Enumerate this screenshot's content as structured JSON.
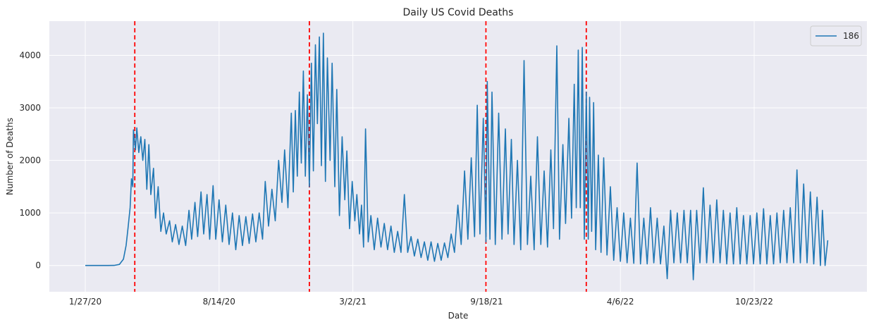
{
  "chart_data": {
    "type": "line",
    "title": "Daily US Covid Deaths",
    "xlabel": "Date",
    "ylabel": "Number of Deaths",
    "x_ticks": [
      "1/27/20",
      "8/14/20",
      "3/2/21",
      "9/18/21",
      "4/6/22",
      "10/23/22"
    ],
    "ylim": [
      -500,
      4650
    ],
    "y_ticks": [
      0,
      1000,
      2000,
      3000,
      4000
    ],
    "grid": true,
    "legend_position": "top-right",
    "series": [
      {
        "name": "186",
        "color": "#1f77b4",
        "note_x_start": "1/27/20",
        "points": [
          [
            "1/27/20",
            0
          ],
          [
            "2/15/20",
            0
          ],
          [
            "3/1/20",
            0
          ],
          [
            "3/10/20",
            2
          ],
          [
            "3/18/20",
            20
          ],
          [
            "3/24/20",
            120
          ],
          [
            "3/28/20",
            380
          ],
          [
            "3/31/20",
            720
          ],
          [
            "4/3/20",
            1100
          ],
          [
            "4/5/20",
            1650
          ],
          [
            "4/7/20",
            1500
          ],
          [
            "4/8/20",
            2580
          ],
          [
            "4/11/20",
            2200
          ],
          [
            "4/13/20",
            2620
          ],
          [
            "4/16/20",
            2150
          ],
          [
            "4/19/20",
            2450
          ],
          [
            "4/22/20",
            2000
          ],
          [
            "4/25/20",
            2400
          ],
          [
            "4/28/20",
            1450
          ],
          [
            "5/1/20",
            2300
          ],
          [
            "5/4/20",
            1350
          ],
          [
            "5/8/20",
            1850
          ],
          [
            "5/11/20",
            900
          ],
          [
            "5/15/20",
            1500
          ],
          [
            "5/19/20",
            650
          ],
          [
            "5/23/20",
            1000
          ],
          [
            "5/27/20",
            600
          ],
          [
            "6/1/20",
            850
          ],
          [
            "6/5/20",
            450
          ],
          [
            "6/10/20",
            780
          ],
          [
            "6/15/20",
            400
          ],
          [
            "6/20/20",
            750
          ],
          [
            "6/25/20",
            380
          ],
          [
            "6/30/20",
            1050
          ],
          [
            "7/4/20",
            500
          ],
          [
            "7/9/20",
            1200
          ],
          [
            "7/13/20",
            550
          ],
          [
            "7/18/20",
            1400
          ],
          [
            "7/22/20",
            600
          ],
          [
            "7/27/20",
            1350
          ],
          [
            "7/31/20",
            500
          ],
          [
            "8/5/20",
            1520
          ],
          [
            "8/9/20",
            500
          ],
          [
            "8/14/20",
            1250
          ],
          [
            "8/19/20",
            450
          ],
          [
            "8/24/20",
            1150
          ],
          [
            "8/29/20",
            400
          ],
          [
            "9/3/20",
            1000
          ],
          [
            "9/8/20",
            300
          ],
          [
            "9/13/20",
            950
          ],
          [
            "9/18/20",
            380
          ],
          [
            "9/23/20",
            930
          ],
          [
            "9/28/20",
            420
          ],
          [
            "10/3/20",
            980
          ],
          [
            "10/8/20",
            450
          ],
          [
            "10/13/20",
            1000
          ],
          [
            "10/18/20",
            500
          ],
          [
            "10/22/20",
            1600
          ],
          [
            "10/27/20",
            750
          ],
          [
            "11/1/20",
            1450
          ],
          [
            "11/6/20",
            850
          ],
          [
            "11/11/20",
            2000
          ],
          [
            "11/16/20",
            1200
          ],
          [
            "11/20/20",
            2200
          ],
          [
            "11/25/20",
            1100
          ],
          [
            "11/30/20",
            2900
          ],
          [
            "12/3/20",
            1400
          ],
          [
            "12/6/20",
            2950
          ],
          [
            "12/9/20",
            1700
          ],
          [
            "12/12/20",
            3300
          ],
          [
            "12/15/20",
            1950
          ],
          [
            "12/18/20",
            3700
          ],
          [
            "12/21/20",
            1700
          ],
          [
            "12/24/20",
            3250
          ],
          [
            "12/27/20",
            1500
          ],
          [
            "12/30/20",
            3850
          ],
          [
            "1/2/21",
            1800
          ],
          [
            "1/5/21",
            4200
          ],
          [
            "1/8/21",
            2700
          ],
          [
            "1/11/21",
            4350
          ],
          [
            "1/14/21",
            1900
          ],
          [
            "1/17/21",
            4420
          ],
          [
            "1/20/21",
            1600
          ],
          [
            "1/23/21",
            3950
          ],
          [
            "1/27/21",
            2000
          ],
          [
            "1/30/21",
            3850
          ],
          [
            "2/3/21",
            1500
          ],
          [
            "2/6/21",
            3350
          ],
          [
            "2/10/21",
            950
          ],
          [
            "2/14/21",
            2450
          ],
          [
            "2/18/21",
            1250
          ],
          [
            "2/21/21",
            2180
          ],
          [
            "2/25/21",
            700
          ],
          [
            "3/1/21",
            1600
          ],
          [
            "3/5/21",
            850
          ],
          [
            "3/8/21",
            1350
          ],
          [
            "3/12/21",
            600
          ],
          [
            "3/15/21",
            1150
          ],
          [
            "3/18/21",
            350
          ],
          [
            "3/21/21",
            2600
          ],
          [
            "3/25/21",
            450
          ],
          [
            "3/29/21",
            950
          ],
          [
            "4/3/21",
            300
          ],
          [
            "4/8/21",
            900
          ],
          [
            "4/13/21",
            350
          ],
          [
            "4/18/21",
            800
          ],
          [
            "4/23/21",
            300
          ],
          [
            "4/28/21",
            750
          ],
          [
            "5/3/21",
            250
          ],
          [
            "5/8/21",
            650
          ],
          [
            "5/13/21",
            250
          ],
          [
            "5/18/21",
            1350
          ],
          [
            "5/23/21",
            250
          ],
          [
            "5/28/21",
            550
          ],
          [
            "6/2/21",
            180
          ],
          [
            "6/7/21",
            500
          ],
          [
            "6/12/21",
            150
          ],
          [
            "6/17/21",
            450
          ],
          [
            "6/22/21",
            100
          ],
          [
            "6/27/21",
            450
          ],
          [
            "7/2/21",
            80
          ],
          [
            "7/7/21",
            420
          ],
          [
            "7/12/21",
            100
          ],
          [
            "7/17/21",
            430
          ],
          [
            "7/22/21",
            150
          ],
          [
            "7/27/21",
            600
          ],
          [
            "8/1/21",
            250
          ],
          [
            "8/6/21",
            1150
          ],
          [
            "8/11/21",
            400
          ],
          [
            "8/16/21",
            1800
          ],
          [
            "8/21/21",
            500
          ],
          [
            "8/26/21",
            2050
          ],
          [
            "8/31/21",
            550
          ],
          [
            "9/4/21",
            3050
          ],
          [
            "9/8/21",
            600
          ],
          [
            "9/13/21",
            2800
          ],
          [
            "9/17/21",
            450
          ],
          [
            "9/19/21",
            3500
          ],
          [
            "9/23/21",
            500
          ],
          [
            "9/26/21",
            3300
          ],
          [
            "10/1/21",
            400
          ],
          [
            "10/6/21",
            2900
          ],
          [
            "10/11/21",
            500
          ],
          [
            "10/16/21",
            2600
          ],
          [
            "10/20/21",
            600
          ],
          [
            "10/25/21",
            2400
          ],
          [
            "10/29/21",
            400
          ],
          [
            "11/3/21",
            2000
          ],
          [
            "11/8/21",
            300
          ],
          [
            "11/13/21",
            3900
          ],
          [
            "11/18/21",
            400
          ],
          [
            "11/23/21",
            1700
          ],
          [
            "11/28/21",
            300
          ],
          [
            "12/3/21",
            2450
          ],
          [
            "12/8/21",
            400
          ],
          [
            "12/13/21",
            1800
          ],
          [
            "12/18/21",
            350
          ],
          [
            "12/23/21",
            2200
          ],
          [
            "12/27/21",
            700
          ],
          [
            "1/1/22",
            4180
          ],
          [
            "1/5/22",
            500
          ],
          [
            "1/10/22",
            2300
          ],
          [
            "1/14/22",
            800
          ],
          [
            "1/19/22",
            2800
          ],
          [
            "1/23/22",
            900
          ],
          [
            "1/27/22",
            3450
          ],
          [
            "1/30/22",
            1100
          ],
          [
            "2/2/22",
            4100
          ],
          [
            "2/5/22",
            1100
          ],
          [
            "2/8/22",
            4150
          ],
          [
            "2/11/22",
            500
          ],
          [
            "2/14/22",
            3300
          ],
          [
            "2/17/22",
            500
          ],
          [
            "2/19/22",
            3200
          ],
          [
            "2/22/22",
            650
          ],
          [
            "2/25/22",
            3100
          ],
          [
            "2/28/22",
            300
          ],
          [
            "3/4/22",
            2100
          ],
          [
            "3/8/22",
            250
          ],
          [
            "3/12/22",
            2050
          ],
          [
            "3/17/22",
            200
          ],
          [
            "3/22/22",
            1500
          ],
          [
            "3/27/22",
            100
          ],
          [
            "4/1/22",
            1100
          ],
          [
            "4/6/22",
            80
          ],
          [
            "4/11/22",
            1000
          ],
          [
            "4/16/22",
            50
          ],
          [
            "4/21/22",
            900
          ],
          [
            "4/26/22",
            40
          ],
          [
            "5/1/22",
            1950
          ],
          [
            "5/6/22",
            30
          ],
          [
            "5/11/22",
            900
          ],
          [
            "5/16/22",
            30
          ],
          [
            "5/21/22",
            1100
          ],
          [
            "5/26/22",
            50
          ],
          [
            "5/31/22",
            900
          ],
          [
            "6/5/22",
            30
          ],
          [
            "6/10/22",
            750
          ],
          [
            "6/15/22",
            -250
          ],
          [
            "6/20/22",
            1050
          ],
          [
            "6/25/22",
            50
          ],
          [
            "6/30/22",
            1000
          ],
          [
            "7/5/22",
            50
          ],
          [
            "7/10/22",
            1050
          ],
          [
            "7/15/22",
            50
          ],
          [
            "7/20/22",
            1050
          ],
          [
            "7/24/22",
            -270
          ],
          [
            "7/29/22",
            1050
          ],
          [
            "8/3/22",
            50
          ],
          [
            "8/8/22",
            1480
          ],
          [
            "8/13/22",
            50
          ],
          [
            "8/18/22",
            1150
          ],
          [
            "8/23/22",
            50
          ],
          [
            "8/28/22",
            1250
          ],
          [
            "9/2/22",
            50
          ],
          [
            "9/7/22",
            1050
          ],
          [
            "9/12/22",
            30
          ],
          [
            "9/17/22",
            1000
          ],
          [
            "9/22/22",
            30
          ],
          [
            "9/27/22",
            1100
          ],
          [
            "10/2/22",
            30
          ],
          [
            "10/7/22",
            950
          ],
          [
            "10/12/22",
            30
          ],
          [
            "10/17/22",
            950
          ],
          [
            "10/22/22",
            30
          ],
          [
            "10/27/22",
            1000
          ],
          [
            "11/1/22",
            30
          ],
          [
            "11/6/22",
            1080
          ],
          [
            "11/11/22",
            30
          ],
          [
            "11/16/22",
            950
          ],
          [
            "11/21/22",
            30
          ],
          [
            "11/26/22",
            1000
          ],
          [
            "12/1/22",
            50
          ],
          [
            "12/6/22",
            1050
          ],
          [
            "12/11/22",
            50
          ],
          [
            "12/16/22",
            1100
          ],
          [
            "12/21/22",
            50
          ],
          [
            "12/26/22",
            1820
          ],
          [
            "12/31/22",
            50
          ],
          [
            "1/5/23",
            1550
          ],
          [
            "1/10/23",
            50
          ],
          [
            "1/15/23",
            1400
          ],
          [
            "1/20/23",
            30
          ],
          [
            "1/25/23",
            1300
          ],
          [
            "1/30/23",
            0
          ],
          [
            "2/2/23",
            1050
          ],
          [
            "2/6/23",
            0
          ],
          [
            "2/10/23",
            480
          ]
        ]
      }
    ],
    "vlines": {
      "color": "#ff0000",
      "style": "dashed",
      "x": [
        "4/10/20",
        "12/27/20",
        "9/17/21",
        "2/14/22"
      ]
    }
  }
}
